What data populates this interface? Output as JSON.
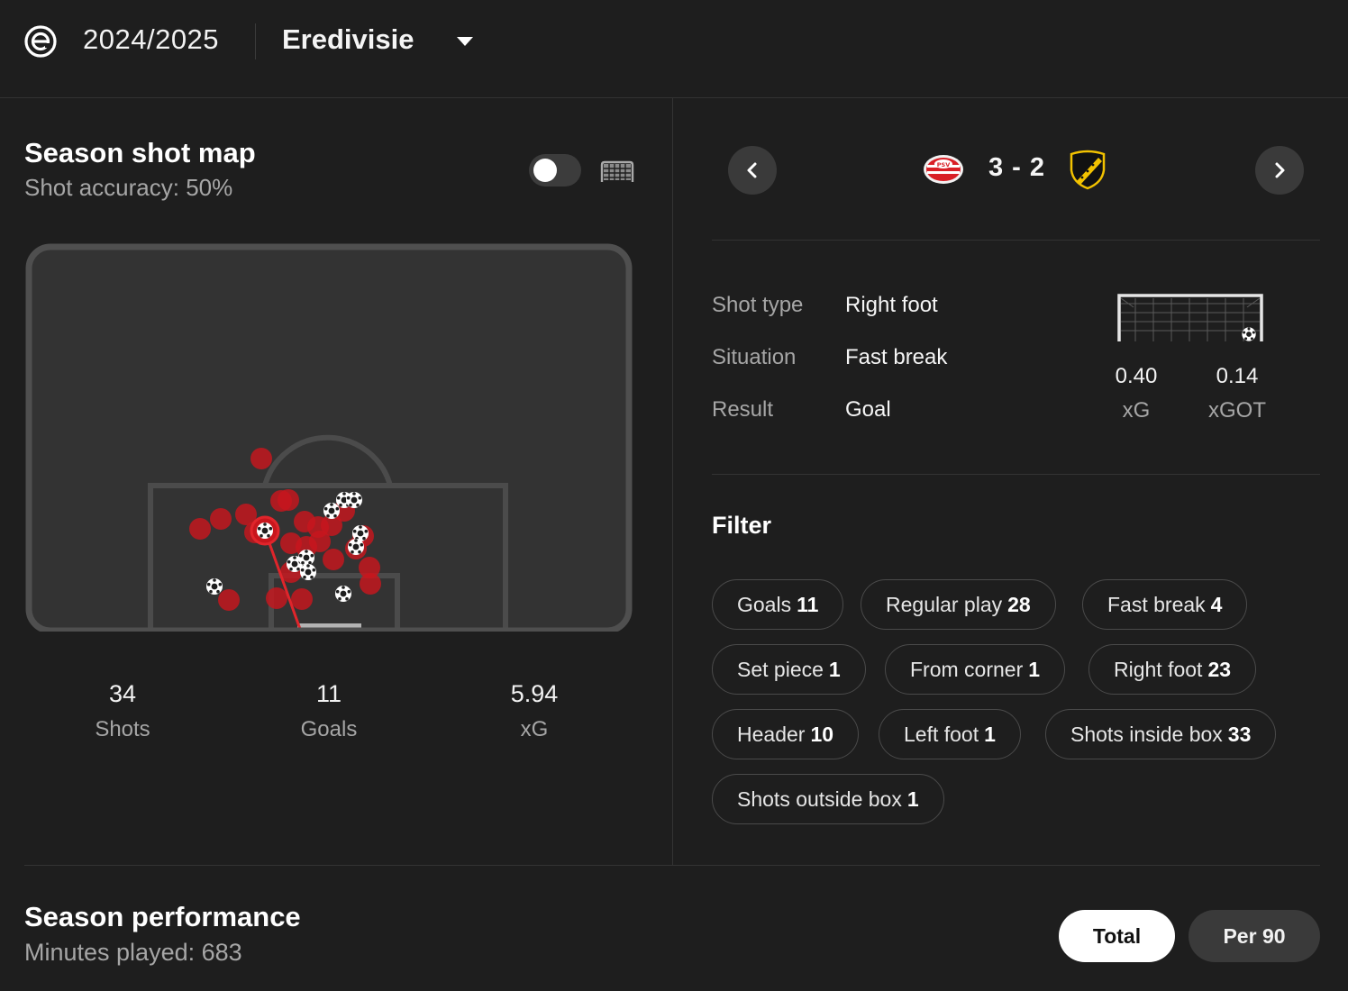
{
  "header": {
    "season": "2024/2025",
    "league": "Eredivisie",
    "league_logo_icon": "eredivisie-logo-icon",
    "dropdown_icon": "caret-down-icon"
  },
  "shot_map": {
    "title": "Season shot map",
    "subtitle": "Shot accuracy: 50%",
    "toggle_on": false,
    "stats": [
      {
        "value": "34",
        "label": "Shots"
      },
      {
        "value": "11",
        "label": "Goals"
      },
      {
        "value": "5.94",
        "label": "xG"
      }
    ]
  },
  "match": {
    "score": "3 - 2",
    "home_team_icon": "psv-crest-icon",
    "away_team_icon": "nac-crest-icon",
    "prev_icon": "chevron-left-icon",
    "next_icon": "chevron-right-icon"
  },
  "shot_detail": {
    "rows": [
      {
        "label": "Shot type",
        "value": "Right foot"
      },
      {
        "label": "Situation",
        "value": "Fast break"
      },
      {
        "label": "Result",
        "value": "Goal"
      }
    ],
    "xg": {
      "value": "0.40",
      "label": "xG"
    },
    "xgot": {
      "value": "0.14",
      "label": "xGOT"
    }
  },
  "filter": {
    "title": "Filter",
    "chips": [
      {
        "label": "Goals",
        "count": "11"
      },
      {
        "label": "Regular play",
        "count": "28"
      },
      {
        "label": "Fast break",
        "count": "4"
      },
      {
        "label": "Set piece",
        "count": "1"
      },
      {
        "label": "From corner",
        "count": "1"
      },
      {
        "label": "Right foot",
        "count": "23"
      },
      {
        "label": "Header",
        "count": "10"
      },
      {
        "label": "Left foot",
        "count": "1"
      },
      {
        "label": "Shots inside box",
        "count": "33"
      },
      {
        "label": "Shots outside box",
        "count": "1"
      }
    ]
  },
  "season_performance": {
    "title": "Season performance",
    "subtitle": "Minutes played: 683",
    "total_label": "Total",
    "per90_label": "Per 90"
  },
  "colors": {
    "background": "#1e1e1e",
    "pitch": "#333333",
    "shot_red": "#c8161d",
    "chip_border": "#4a4a4a"
  }
}
